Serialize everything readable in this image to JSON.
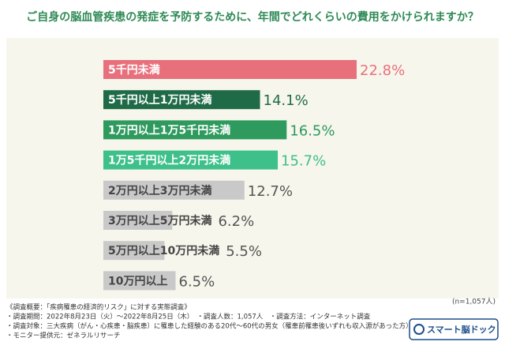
{
  "chart_data": {
    "type": "bar",
    "orientation": "horizontal",
    "title": "ご自身の脳血管疾患の発症を予防するために、年間でどれくらいの費用をかけられますか？",
    "categories": [
      "5千円未満",
      "5千円以上1万円未満",
      "1万円以上1万5千円未満",
      "1万5千円以上2万円未満",
      "2万円以上3万円未満",
      "3万円以上5万円未満",
      "5万円以上10万円未満",
      "10万円以上"
    ],
    "values": [
      22.8,
      14.1,
      16.5,
      15.7,
      12.7,
      6.2,
      5.5,
      6.5
    ],
    "value_labels": [
      "22.8%",
      "14.1%",
      "16.5%",
      "15.7%",
      "12.7%",
      "6.2%",
      "5.5%",
      "6.5%"
    ],
    "colors": [
      "#e8707c",
      "#1f6b48",
      "#2e9a5e",
      "#3ec08a",
      "#c9c9c9",
      "#c9c9c9",
      "#c9c9c9",
      "#c9c9c9"
    ],
    "note": "(n=1,057人)"
  },
  "footer": {
    "lines": [
      "《調査概要：「疾病罹患の経済的リスク」に対する実態調査》",
      "・調査期間：2022年8月23日（火）～2022年8月25日（木）　・調査人数：1,057人　・調査方法：インターネット調査",
      "・調査対象：三大疾病（がん・心疾患・脳疾患）に罹患した経験のある20代～60代の男女（罹患前罹患後いずれも収入源があった方）",
      "・モニター提供元：ゼネラルリサーチ"
    ],
    "logo": "スマート脳ドック"
  }
}
